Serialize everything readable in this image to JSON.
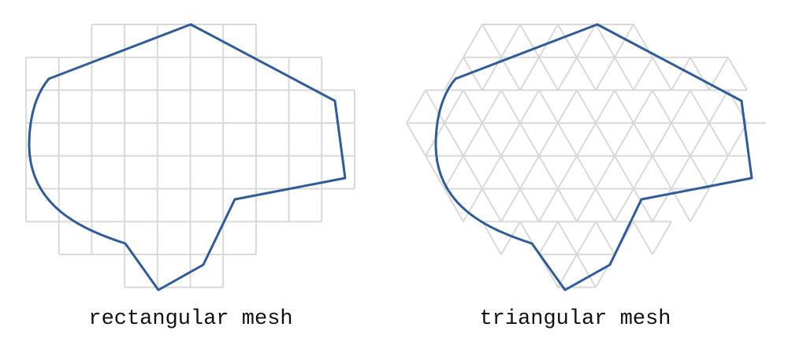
{
  "panels": [
    {
      "caption": "rectangular mesh",
      "mesh_type": "rectangular"
    },
    {
      "caption": "triangular mesh",
      "mesh_type": "triangular"
    }
  ],
  "colors": {
    "mesh_line": "#d9d9d9",
    "boundary": "#2f5c99",
    "caption_text": "#111111"
  }
}
